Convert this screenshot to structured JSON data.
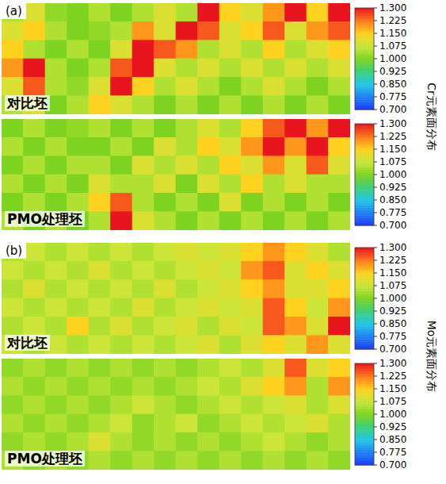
{
  "chart_data": [
    {
      "type": "heatmap",
      "panel": "(a)",
      "tick_labels": false,
      "colorbar_title": "Cr元素面分布",
      "colorbar": {
        "range": [
          0.7,
          1.3
        ],
        "ticks": [
          {
            "value": 0.7,
            "label": "0.700"
          },
          {
            "value": 0.775,
            "label": "0.775"
          },
          {
            "value": 0.85,
            "label": "0.850"
          },
          {
            "value": 0.925,
            "label": "0.925"
          },
          {
            "value": 1.0,
            "label": "1.000"
          },
          {
            "value": 1.075,
            "label": "1.075"
          },
          {
            "value": 1.15,
            "label": "1.150"
          },
          {
            "value": 1.225,
            "label": "1.225"
          },
          {
            "value": 1.3,
            "label": "1.300"
          }
        ]
      },
      "maps": [
        {
          "title": "对比坯",
          "cells": [
            [
              1.05,
              1.1,
              1.02,
              1.0,
              1.05,
              1.0,
              1.05,
              1.1,
              1.05,
              1.3,
              1.15,
              1.1,
              1.2,
              1.3,
              1.15,
              1.3
            ],
            [
              1.1,
              1.15,
              1.05,
              1.0,
              1.02,
              1.05,
              1.2,
              1.1,
              1.3,
              1.25,
              1.1,
              1.15,
              1.25,
              1.1,
              1.2,
              1.25
            ],
            [
              1.15,
              1.05,
              1.0,
              1.05,
              1.0,
              1.1,
              1.3,
              1.25,
              1.2,
              1.05,
              1.1,
              1.05,
              1.15,
              1.05,
              1.1,
              1.15
            ],
            [
              1.2,
              1.3,
              1.05,
              1.0,
              1.05,
              1.25,
              1.3,
              1.1,
              1.05,
              1.1,
              1.05,
              1.1,
              1.05,
              1.1,
              1.05,
              1.1
            ],
            [
              1.1,
              1.25,
              1.05,
              1.02,
              1.1,
              1.3,
              1.15,
              1.05,
              1.1,
              1.05,
              1.0,
              1.05,
              1.1,
              1.05,
              1.0,
              1.05
            ],
            [
              1.05,
              1.1,
              1.0,
              1.05,
              1.15,
              1.1,
              1.05,
              1.0,
              1.05,
              1.0,
              1.05,
              1.0,
              1.05,
              1.0,
              1.05,
              1.0
            ]
          ]
        },
        {
          "title": "PMO处理坯",
          "cells": [
            [
              1.0,
              1.05,
              1.0,
              1.02,
              1.05,
              1.0,
              1.05,
              1.0,
              1.05,
              1.1,
              1.05,
              1.15,
              1.25,
              1.3,
              1.2,
              1.3
            ],
            [
              1.05,
              1.0,
              1.05,
              1.0,
              1.0,
              1.05,
              1.0,
              1.1,
              1.05,
              1.15,
              1.1,
              1.2,
              1.3,
              1.2,
              1.3,
              1.15
            ],
            [
              1.0,
              1.05,
              1.0,
              1.05,
              1.05,
              1.0,
              1.1,
              1.05,
              1.1,
              1.05,
              1.15,
              1.1,
              1.2,
              1.1,
              1.25,
              1.1
            ],
            [
              1.05,
              1.0,
              1.05,
              1.0,
              1.1,
              1.05,
              1.05,
              1.1,
              1.0,
              1.1,
              1.05,
              1.15,
              1.05,
              1.1,
              1.05,
              1.05
            ],
            [
              1.0,
              1.05,
              1.0,
              1.05,
              1.15,
              1.25,
              1.05,
              1.0,
              1.05,
              1.0,
              1.1,
              1.0,
              1.05,
              1.0,
              1.05,
              1.0
            ],
            [
              1.05,
              1.0,
              1.05,
              1.0,
              1.05,
              1.3,
              1.1,
              1.05,
              1.0,
              1.05,
              1.0,
              1.05,
              1.0,
              1.05,
              1.0,
              1.05
            ]
          ]
        }
      ]
    },
    {
      "type": "heatmap",
      "panel": "(b)",
      "tick_labels": false,
      "colorbar_title": "Mo元素面分布",
      "colorbar": {
        "range": [
          0.7,
          1.3
        ],
        "ticks": [
          {
            "value": 0.7,
            "label": "0.700"
          },
          {
            "value": 0.775,
            "label": "0.775"
          },
          {
            "value": 0.85,
            "label": "0.850"
          },
          {
            "value": 0.925,
            "label": "0.925"
          },
          {
            "value": 1.0,
            "label": "1.000"
          },
          {
            "value": 1.075,
            "label": "1.075"
          },
          {
            "value": 1.15,
            "label": "1.150"
          },
          {
            "value": 1.225,
            "label": "1.225"
          },
          {
            "value": 1.3,
            "label": "1.300"
          }
        ]
      },
      "maps": [
        {
          "title": "对比坯",
          "cells": [
            [
              1.05,
              1.08,
              1.05,
              1.08,
              1.05,
              1.08,
              1.05,
              1.08,
              1.1,
              1.08,
              1.1,
              1.15,
              1.2,
              1.15,
              1.1,
              1.05
            ],
            [
              1.08,
              1.05,
              1.08,
              1.05,
              1.1,
              1.05,
              1.08,
              1.05,
              1.08,
              1.1,
              1.08,
              1.2,
              1.25,
              1.1,
              1.15,
              1.1
            ],
            [
              1.05,
              1.1,
              1.05,
              1.08,
              1.05,
              1.08,
              1.05,
              1.1,
              1.05,
              1.08,
              1.1,
              1.15,
              1.2,
              1.1,
              1.1,
              1.15
            ],
            [
              1.08,
              1.05,
              1.08,
              1.05,
              1.08,
              1.05,
              1.1,
              1.05,
              1.08,
              1.1,
              1.08,
              1.1,
              1.25,
              1.15,
              1.08,
              1.2
            ],
            [
              1.05,
              1.08,
              1.05,
              1.15,
              1.05,
              1.1,
              1.05,
              1.08,
              1.1,
              1.05,
              1.1,
              1.08,
              1.25,
              1.2,
              1.1,
              1.3
            ],
            [
              1.08,
              1.05,
              1.08,
              1.05,
              1.08,
              1.05,
              1.08,
              1.05,
              1.08,
              1.1,
              1.05,
              1.1,
              1.15,
              1.1,
              1.2,
              1.1
            ]
          ]
        },
        {
          "title": "PMO处理坯",
          "cells": [
            [
              1.02,
              1.05,
              1.02,
              1.05,
              1.02,
              1.05,
              1.02,
              1.05,
              1.02,
              1.05,
              1.08,
              1.05,
              1.1,
              1.25,
              1.1,
              1.15
            ],
            [
              1.05,
              1.02,
              1.05,
              1.02,
              1.05,
              1.02,
              1.05,
              1.02,
              1.05,
              1.08,
              1.05,
              1.1,
              1.15,
              1.2,
              1.05,
              1.2
            ],
            [
              1.02,
              1.05,
              1.02,
              1.05,
              1.02,
              1.05,
              1.08,
              1.05,
              1.02,
              1.05,
              1.08,
              1.05,
              1.08,
              1.1,
              1.05,
              1.1
            ],
            [
              1.05,
              1.02,
              1.05,
              1.02,
              1.05,
              1.08,
              1.02,
              1.05,
              1.08,
              1.02,
              1.05,
              1.08,
              1.05,
              1.08,
              1.1,
              1.05
            ],
            [
              1.02,
              1.05,
              1.02,
              1.05,
              1.1,
              1.05,
              1.02,
              1.05,
              1.02,
              1.05,
              1.02,
              1.05,
              1.08,
              1.05,
              1.02,
              1.05
            ],
            [
              1.05,
              1.02,
              1.05,
              1.02,
              1.05,
              1.02,
              1.05,
              1.02,
              1.05,
              1.02,
              1.05,
              1.02,
              1.05,
              1.02,
              1.05,
              1.02
            ]
          ]
        }
      ]
    }
  ]
}
